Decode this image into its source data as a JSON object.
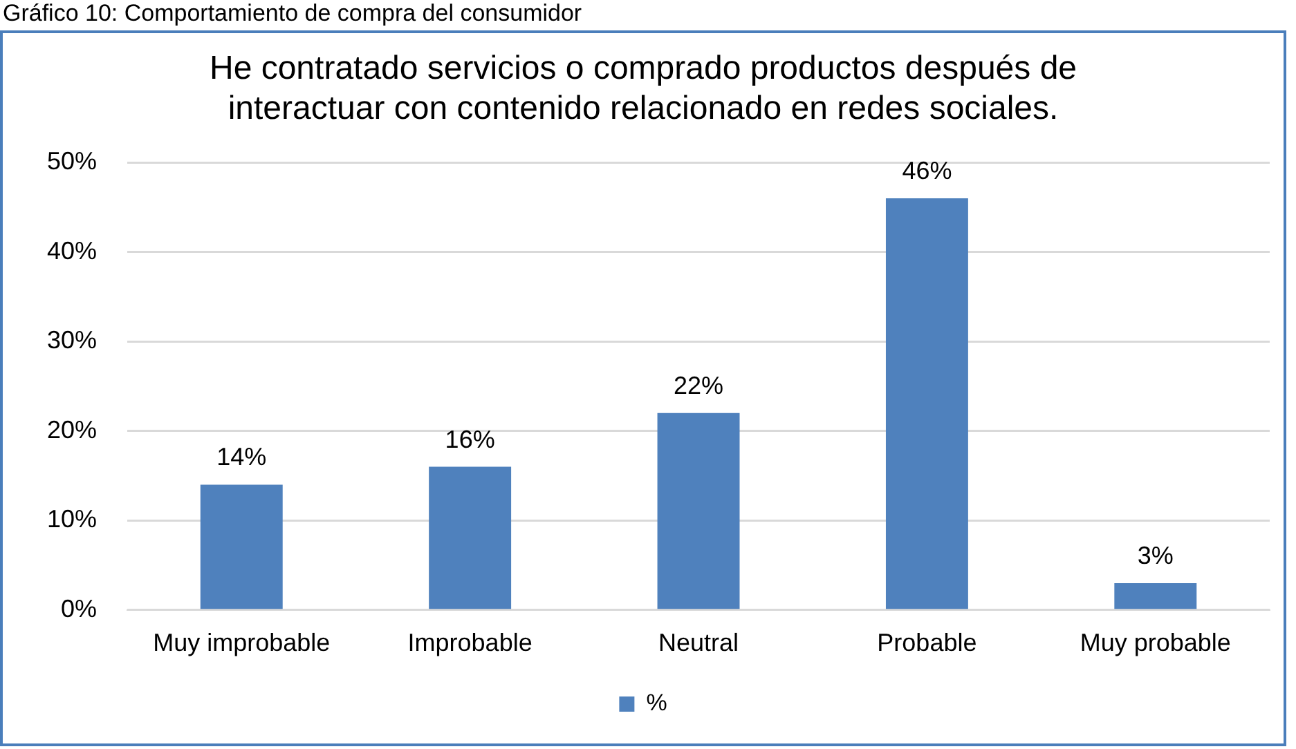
{
  "chart_data": {
    "type": "bar",
    "title": "He contratado servicios o comprado productos después de interactuar con contenido relacionado en redes sociales.",
    "annotations": [
      "Gráfico 10: Comportamiento de compra del consumidor"
    ],
    "categories": [
      "Muy improbable",
      "Improbable",
      "Neutral",
      "Probable",
      "Muy probable"
    ],
    "series": [
      {
        "name": "%",
        "color": "#4f81bd",
        "values": [
          14,
          16,
          22,
          46,
          3
        ],
        "value_labels": [
          "14%",
          "16%",
          "22%",
          "46%",
          "3%"
        ]
      }
    ],
    "ylim": [
      0,
      50
    ],
    "yticks": [
      {
        "value": 0,
        "label": "0%"
      },
      {
        "value": 10,
        "label": "10%"
      },
      {
        "value": 20,
        "label": "20%"
      },
      {
        "value": 30,
        "label": "30%"
      },
      {
        "value": 40,
        "label": "40%"
      },
      {
        "value": 50,
        "label": "50%"
      }
    ],
    "grid": "y",
    "legend": "bottom"
  }
}
